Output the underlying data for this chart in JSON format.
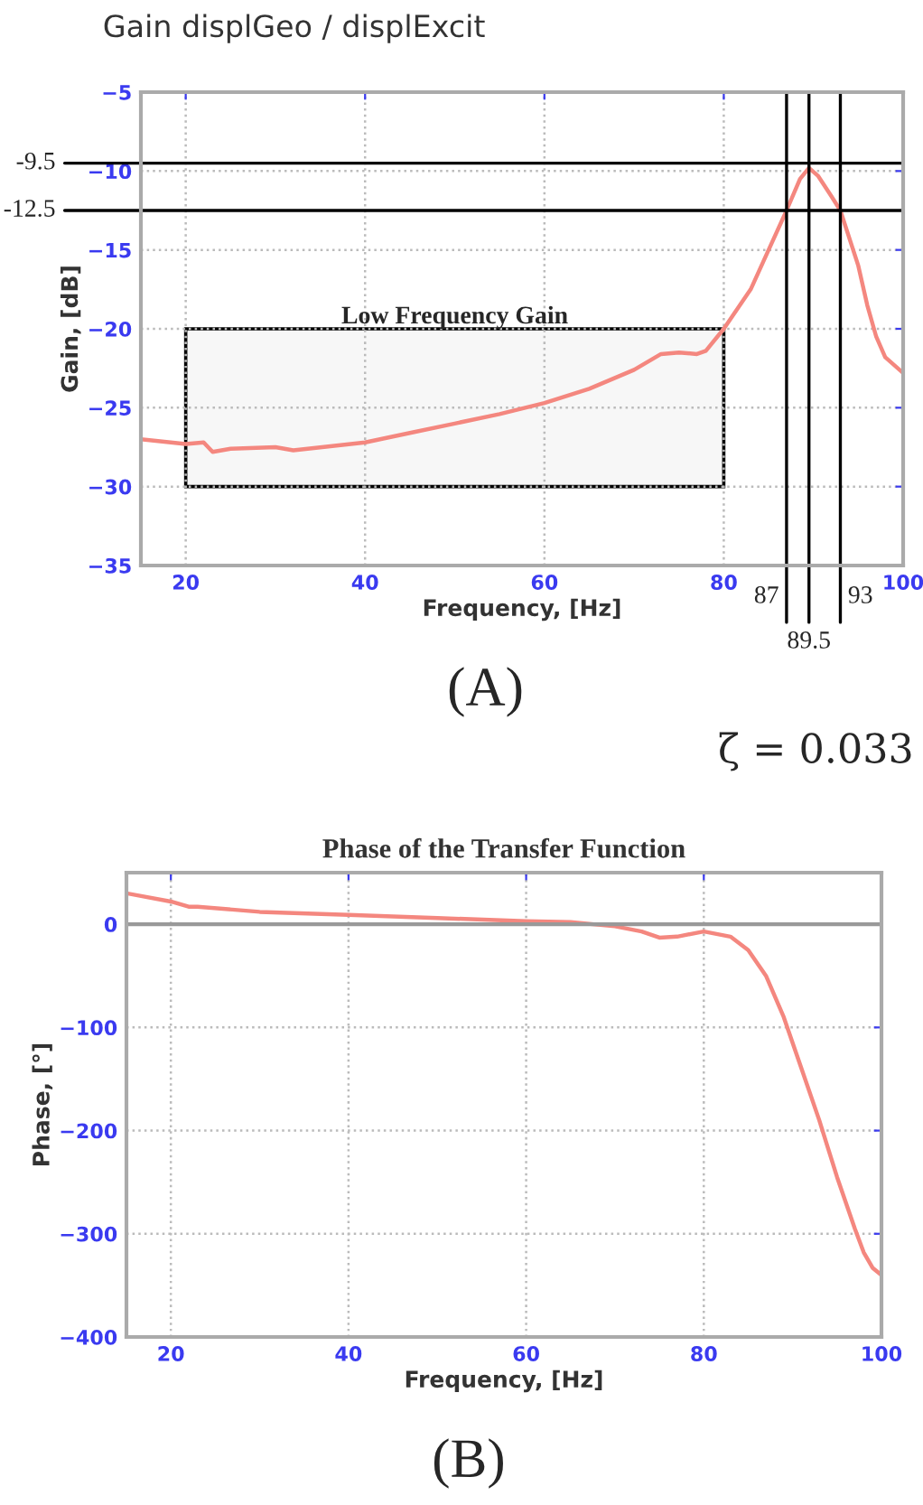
{
  "chart_data": [
    {
      "type": "line",
      "title": "Gain displGeo / displExcit",
      "xlabel": "Frequency, [Hz]",
      "ylabel": "Gain, [dB]",
      "x": [
        15,
        20,
        22,
        23,
        25,
        30,
        32,
        40,
        45,
        50,
        55,
        60,
        65,
        70,
        73,
        75,
        77,
        78,
        80,
        83,
        85,
        87,
        88.5,
        89.5,
        90.5,
        92,
        93,
        95,
        96,
        97,
        98,
        100
      ],
      "series": [
        {
          "color": "#f4877f",
          "values": [
            -27,
            -27.3,
            -27.2,
            -27.8,
            -27.6,
            -27.5,
            -27.7,
            -27.2,
            -26.6,
            -26,
            -25.4,
            -24.7,
            -23.8,
            -22.6,
            -21.6,
            -21.5,
            -21.6,
            -21.4,
            -20,
            -17.5,
            -15,
            -12.5,
            -10.5,
            -9.8,
            -10.3,
            -11.6,
            -12.5,
            -16,
            -18.5,
            -20.5,
            -21.8,
            -22.8
          ]
        }
      ],
      "xlim": [
        15,
        100
      ],
      "ylim": [
        -35,
        -5
      ],
      "xticks": [
        20,
        40,
        60,
        80,
        100
      ],
      "yticks": [
        -35,
        -30,
        -25,
        -20,
        -15,
        -10,
        -5
      ],
      "grid": true,
      "ref_lines": [
        {
          "axis": "y",
          "value": -9.5,
          "label": "-9.5",
          "color": "#000000"
        },
        {
          "axis": "y",
          "value": -12.5,
          "label": "-12.5",
          "color": "#000000"
        },
        {
          "axis": "x",
          "value": 87,
          "label": "87",
          "color": "#000000"
        },
        {
          "axis": "x",
          "value": 89.5,
          "label": "89.5",
          "color": "#000000"
        },
        {
          "axis": "x",
          "value": 93,
          "label": "93",
          "color": "#000000"
        }
      ],
      "bands": [
        {
          "axis": "x",
          "from": 20,
          "to": 80,
          "label": "Low Frequency Gain",
          "color": "#f7f7f7"
        }
      ],
      "annotations": [
        "(A)",
        "ζ = 0.033"
      ]
    },
    {
      "type": "line",
      "title": "Phase of the Transfer Function",
      "xlabel": "Frequency, [Hz]",
      "ylabel": "Phase, [°]",
      "x": [
        15,
        20,
        22,
        23,
        30,
        40,
        50,
        60,
        65,
        70,
        73,
        75,
        77,
        80,
        83,
        85,
        87,
        89,
        91,
        93,
        95,
        97,
        98,
        99,
        100
      ],
      "series": [
        {
          "color": "#f4877f",
          "values": [
            30,
            22,
            17,
            17,
            12,
            9,
            6,
            3,
            2,
            -2,
            -7,
            -13,
            -12,
            -7,
            -12,
            -25,
            -50,
            -90,
            -140,
            -190,
            -245,
            -295,
            -318,
            -333,
            -340
          ]
        }
      ],
      "xlim": [
        15,
        100
      ],
      "ylim": [
        -400,
        50
      ],
      "xticks": [
        20,
        40,
        60,
        80,
        100
      ],
      "yticks": [
        -400,
        -300,
        -200,
        -100,
        0
      ],
      "grid": true,
      "ref_lines": [
        {
          "axis": "y",
          "value": 0,
          "color": "#999999"
        }
      ],
      "annotations": [
        "(B)"
      ]
    }
  ]
}
